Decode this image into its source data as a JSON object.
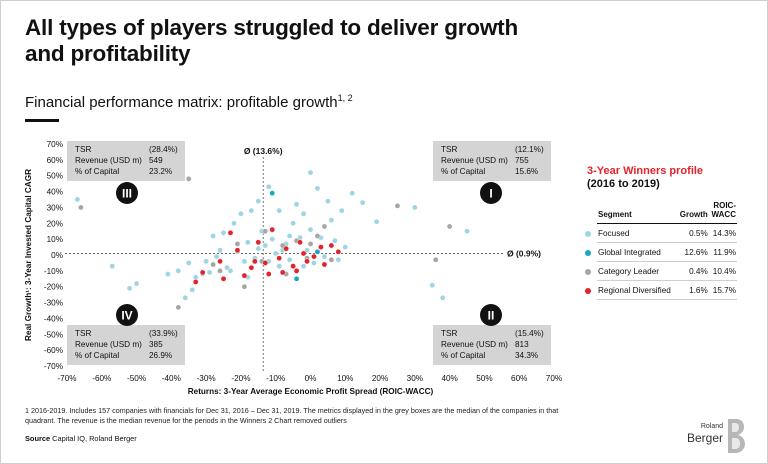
{
  "title": "All types of players struggled to deliver growth and profitability",
  "subtitle": "Financial performance matrix: profitable growth",
  "subtitle_sup": "1, 2",
  "colors": {
    "focused": "#9fd5e3",
    "global_integrated": "#1aa7c4",
    "category_leader": "#a6a6a6",
    "regional_diversified": "#e2232b",
    "box": "#d4d4d4",
    "accent": "#e2232b"
  },
  "chart_data": {
    "type": "scatter",
    "xlabel": "Returns: 3-Year Average Economic Profit Spread (ROIC-WACC)",
    "ylabel": "Real Growth¹: 3-Year Invested Capital CAGR",
    "xlim": [
      -70,
      70
    ],
    "ylim": [
      -70,
      70
    ],
    "x_ticks": [
      "-70%",
      "-60%",
      "-50%",
      "-40%",
      "-30%",
      "-20%",
      "-10%",
      "0%",
      "10%",
      "20%",
      "30%",
      "40%",
      "50%",
      "60%",
      "70%"
    ],
    "y_ticks": [
      "70%",
      "60%",
      "50%",
      "40%",
      "30%",
      "20%",
      "10%",
      "0%",
      "-10%",
      "-20%",
      "-30%",
      "-40%",
      "-50%",
      "-60%",
      "-70%"
    ],
    "median_x": -13.6,
    "median_y": 0.9,
    "median_x_label": "Ø (13.6%)",
    "median_y_label": "Ø (0.9%)",
    "quadrants": [
      {
        "numeral": "III",
        "tsr_label": "TSR",
        "tsr": "(28.4%)",
        "revenue_label": "Revenue (USD m)",
        "revenue": "549",
        "capital_label": "% of Capital",
        "capital": "23.2%"
      },
      {
        "numeral": "I",
        "tsr_label": "TSR",
        "tsr": "(12.1%)",
        "revenue_label": "Revenue (USD m)",
        "revenue": "755",
        "capital_label": "% of Capital",
        "capital": "15.6%"
      },
      {
        "numeral": "IV",
        "tsr_label": "TSR",
        "tsr": "(33.9%)",
        "revenue_label": "Revenue (USD m)",
        "revenue": "385",
        "capital_label": "% of Capital",
        "capital": "26.9%"
      },
      {
        "numeral": "II",
        "tsr_label": "TSR",
        "tsr": "(15.4%)",
        "revenue_label": "Revenue (USD m)",
        "revenue": "813",
        "capital_label": "% of Capital",
        "capital": "34.3%"
      }
    ],
    "series": [
      {
        "segment": "Focused",
        "color": "#9fd5e3",
        "points": [
          [
            -67,
            35
          ],
          [
            -57,
            -7
          ],
          [
            -50,
            -18
          ],
          [
            -52,
            -21
          ],
          [
            -41,
            -12
          ],
          [
            -38,
            -10
          ],
          [
            -36,
            -27
          ],
          [
            -34,
            -22
          ],
          [
            -33,
            -14
          ],
          [
            -30,
            -4
          ],
          [
            -29,
            -11
          ],
          [
            -28,
            12
          ],
          [
            -27,
            -1
          ],
          [
            -26,
            3
          ],
          [
            -25,
            14
          ],
          [
            -24,
            -8
          ],
          [
            -22,
            20
          ],
          [
            -21,
            2
          ],
          [
            -20,
            26
          ],
          [
            -19,
            -4
          ],
          [
            -18,
            8
          ],
          [
            -17,
            28
          ],
          [
            -16,
            -2
          ],
          [
            -15,
            4
          ],
          [
            -15,
            34
          ],
          [
            -14,
            15
          ],
          [
            -13,
            6
          ],
          [
            -12,
            43
          ],
          [
            -12,
            -4
          ],
          [
            -11,
            10
          ],
          [
            -10,
            1
          ],
          [
            -9,
            -7
          ],
          [
            -9,
            28
          ],
          [
            -8,
            3
          ],
          [
            -7,
            7
          ],
          [
            -6,
            -3
          ],
          [
            -5,
            20
          ],
          [
            -4,
            32
          ],
          [
            -3,
            11
          ],
          [
            -2,
            26
          ],
          [
            -1,
            3
          ],
          [
            0,
            16
          ],
          [
            1,
            -5
          ],
          [
            2,
            42
          ],
          [
            3,
            11
          ],
          [
            4,
            -1
          ],
          [
            5,
            34
          ],
          [
            6,
            22
          ],
          [
            7,
            9
          ],
          [
            9,
            28
          ],
          [
            12,
            39
          ],
          [
            15,
            33
          ],
          [
            19,
            21
          ],
          [
            30,
            30
          ],
          [
            35,
            -19
          ],
          [
            38,
            -27
          ],
          [
            45,
            15
          ],
          [
            -31,
            -12
          ],
          [
            -23,
            -10
          ],
          [
            -6,
            12
          ],
          [
            -2,
            -7
          ],
          [
            10,
            5
          ],
          [
            -35,
            -5
          ],
          [
            -18,
            -14
          ],
          [
            8,
            -3
          ],
          [
            0,
            52
          ]
        ]
      },
      {
        "segment": "Global Integrated",
        "color": "#1aa7c4",
        "points": [
          [
            -11,
            39
          ],
          [
            -4,
            -15
          ],
          [
            2,
            2
          ]
        ]
      },
      {
        "segment": "Category Leader",
        "color": "#a6a6a6",
        "points": [
          [
            -66,
            30
          ],
          [
            -35,
            48
          ],
          [
            -38,
            -33
          ],
          [
            -26,
            -10
          ],
          [
            -19,
            -20
          ],
          [
            -14,
            -4
          ],
          [
            -8,
            6
          ],
          [
            -7,
            -12
          ],
          [
            -4,
            9
          ],
          [
            -1,
            -2
          ],
          [
            2,
            12
          ],
          [
            4,
            18
          ],
          [
            6,
            -3
          ],
          [
            25,
            31
          ],
          [
            36,
            -3
          ],
          [
            40,
            18
          ],
          [
            -28,
            -6
          ],
          [
            -21,
            7
          ],
          [
            -13,
            15
          ],
          [
            0,
            7
          ]
        ]
      },
      {
        "segment": "Regional Diversified",
        "color": "#e2232b",
        "points": [
          [
            -33,
            -17
          ],
          [
            -31,
            -11
          ],
          [
            -26,
            -4
          ],
          [
            -25,
            -15
          ],
          [
            -23,
            14
          ],
          [
            -21,
            3
          ],
          [
            -19,
            -13
          ],
          [
            -17,
            -8
          ],
          [
            -15,
            8
          ],
          [
            -13,
            -5
          ],
          [
            -11,
            16
          ],
          [
            -9,
            -2
          ],
          [
            -8,
            -11
          ],
          [
            -7,
            4
          ],
          [
            -5,
            -7
          ],
          [
            -3,
            8
          ],
          [
            -2,
            1
          ],
          [
            -1,
            -4
          ],
          [
            1,
            -1
          ],
          [
            3,
            5
          ],
          [
            4,
            -6
          ],
          [
            6,
            6
          ],
          [
            8,
            2
          ],
          [
            -4,
            -10
          ],
          [
            -16,
            -4
          ],
          [
            -12,
            -12
          ]
        ]
      }
    ]
  },
  "panel": {
    "title": "3-Year Winners profile",
    "subtitle": "(2016 to 2019)",
    "headers": {
      "segment": "Segment",
      "growth": "Growth",
      "roic": "ROIC-\nWACC"
    },
    "rows": [
      {
        "segment": "Focused",
        "growth": "0.5%",
        "roic": "14.3%",
        "color": "#9fd5e3"
      },
      {
        "segment": "Global Integrated",
        "growth": "12.6%",
        "roic": "11.9%",
        "color": "#1aa7c4"
      },
      {
        "segment": "Category Leader",
        "growth": "0.4%",
        "roic": "10.4%",
        "color": "#a6a6a6"
      },
      {
        "segment": "Regional Diversified",
        "growth": "1.6%",
        "roic": "15.7%",
        "color": "#e2232b"
      }
    ]
  },
  "footnote": "1 2016-2019. Includes 157 companies with financials for Dec 31, 2016 – Dec 31, 2019. The metrics displayed in the grey boxes are the median of the companies in that quadrant. The revenue is the median revenue for the periods in the Winners     2 Chart removed outliers",
  "source_label": "Source",
  "source": "Capital IQ, Roland Berger",
  "logo": {
    "line1": "Roland",
    "line2": "Berger"
  }
}
